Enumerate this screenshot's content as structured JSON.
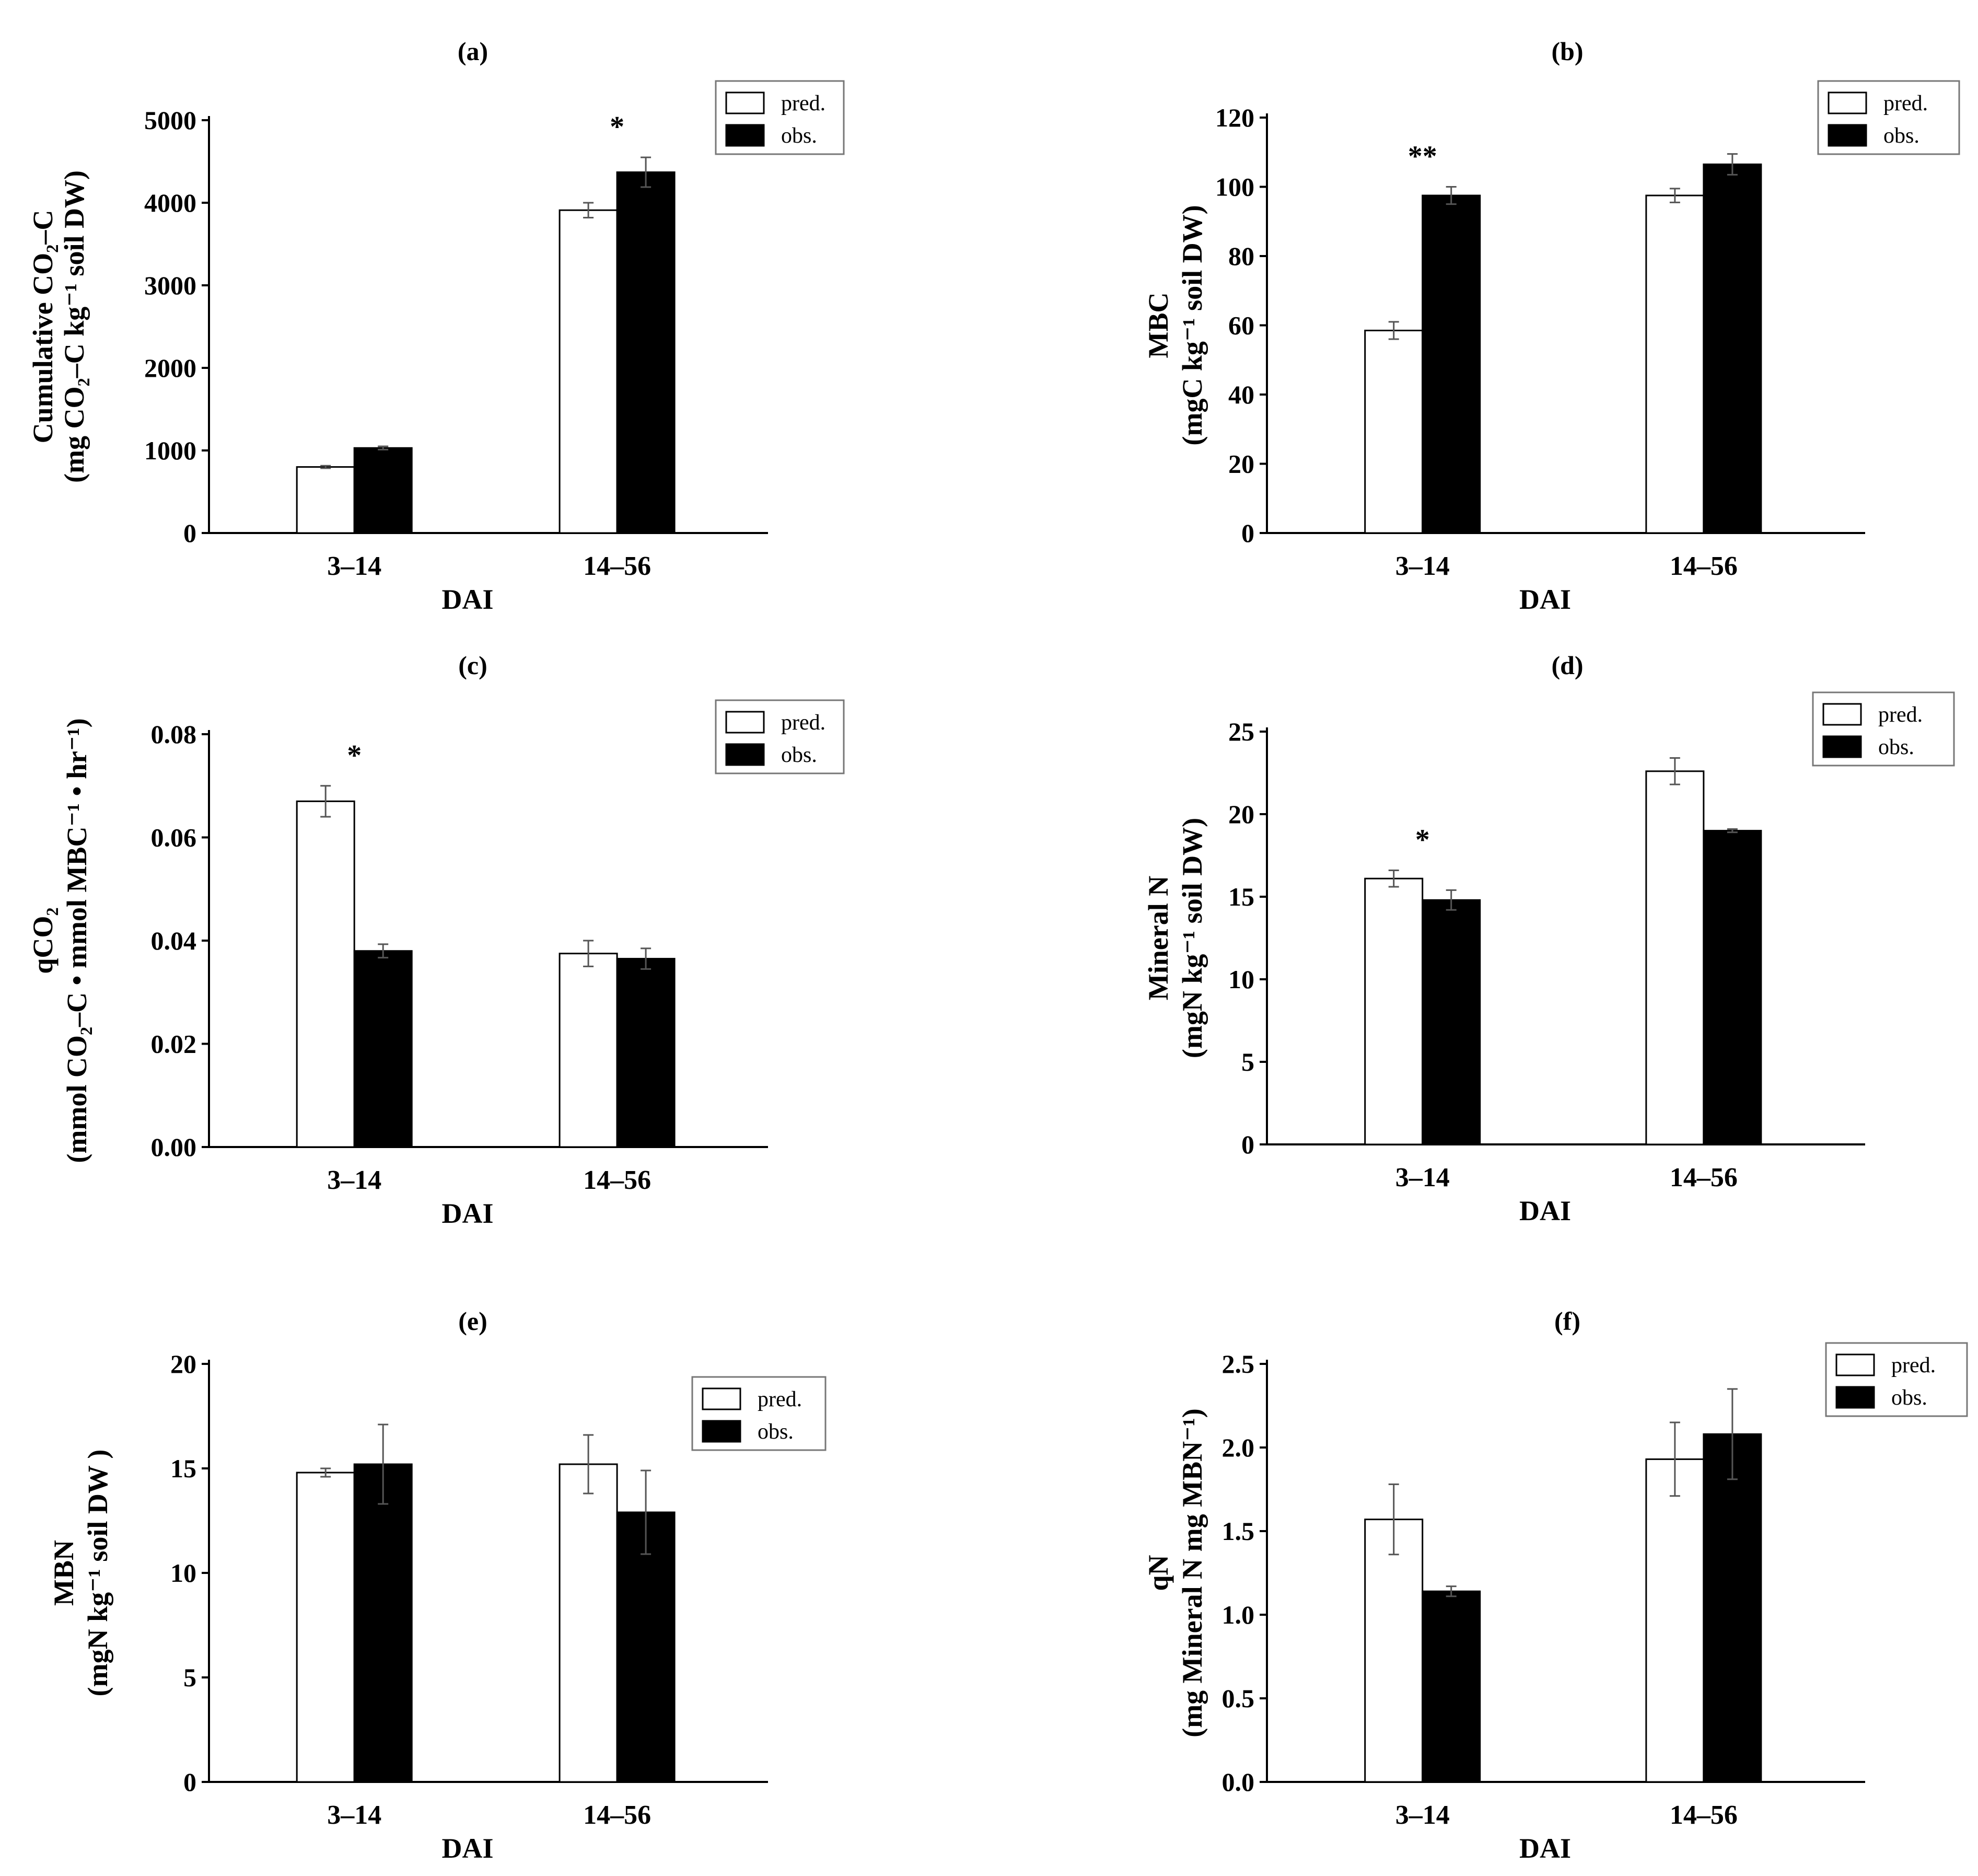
{
  "chart_data": [
    {
      "panel": "(a)",
      "type": "bar",
      "categories": [
        "3–14",
        "14–56"
      ],
      "series": [
        {
          "name": "pred.",
          "values": [
            800,
            3910
          ],
          "errors": [
            15,
            90
          ]
        },
        {
          "name": "obs.",
          "values": [
            1030,
            4370
          ],
          "errors": [
            20,
            180
          ]
        }
      ],
      "ylim": [
        0,
        5000
      ],
      "yticks": [
        "0",
        "1000",
        "2000",
        "3000",
        "4000",
        "5000"
      ],
      "ylabel_lines": [
        "Cumulative CO₂–C",
        "(mg CO₂–C kg⁻¹ soil DW)"
      ],
      "xlabel": "DAI",
      "significance": [
        "",
        "*"
      ],
      "legend": [
        "pred.",
        "obs."
      ]
    },
    {
      "panel": "(b)",
      "type": "bar",
      "categories": [
        "3–14",
        "14–56"
      ],
      "series": [
        {
          "name": "pred.",
          "values": [
            58.5,
            97.5
          ],
          "errors": [
            2.5,
            2
          ]
        },
        {
          "name": "obs.",
          "values": [
            97.5,
            106.5
          ],
          "errors": [
            2.5,
            3
          ]
        }
      ],
      "ylim": [
        0,
        120
      ],
      "yticks": [
        "0",
        "20",
        "40",
        "60",
        "80",
        "100",
        "120"
      ],
      "ylabel_lines": [
        "MBC",
        "(mgC kg⁻¹ soil DW)"
      ],
      "xlabel": "DAI",
      "significance": [
        "**",
        ""
      ],
      "legend": [
        "pred.",
        "obs."
      ]
    },
    {
      "panel": "(c)",
      "type": "bar",
      "categories": [
        "3–14",
        "14–56"
      ],
      "series": [
        {
          "name": "pred.",
          "values": [
            0.067,
            0.0375
          ],
          "errors": [
            0.003,
            0.0025
          ]
        },
        {
          "name": "obs.",
          "values": [
            0.038,
            0.0365
          ],
          "errors": [
            0.0013,
            0.002
          ]
        }
      ],
      "ylim": [
        0,
        0.08
      ],
      "yticks": [
        "0.00",
        "0.02",
        "0.04",
        "0.06",
        "0.08"
      ],
      "ylabel_lines": [
        "qCO₂",
        "(mmol CO₂–C • mmol MBC⁻¹ • hr⁻¹)"
      ],
      "xlabel": "DAI",
      "significance": [
        "*",
        ""
      ],
      "legend": [
        "pred.",
        "obs."
      ]
    },
    {
      "panel": "(d)",
      "type": "bar",
      "categories": [
        "3–14",
        "14–56"
      ],
      "series": [
        {
          "name": "pred.",
          "values": [
            16.1,
            22.6
          ],
          "errors": [
            0.5,
            0.8
          ]
        },
        {
          "name": "obs.",
          "values": [
            14.8,
            19.0
          ],
          "errors": [
            0.6,
            0.1
          ]
        }
      ],
      "ylim": [
        0,
        25
      ],
      "yticks": [
        "0",
        "5",
        "10",
        "15",
        "20",
        "25"
      ],
      "ylabel_lines": [
        "Mineral N",
        "(mgN kg⁻¹ soil DW)"
      ],
      "xlabel": "DAI",
      "significance": [
        "*",
        ""
      ],
      "legend": [
        "pred.",
        "obs."
      ]
    },
    {
      "panel": "(e)",
      "type": "bar",
      "categories": [
        "3–14",
        "14–56"
      ],
      "series": [
        {
          "name": "pred.",
          "values": [
            14.8,
            15.2
          ],
          "errors": [
            0.2,
            1.4
          ]
        },
        {
          "name": "obs.",
          "values": [
            15.2,
            12.9
          ],
          "errors": [
            1.9,
            2.0
          ]
        }
      ],
      "ylim": [
        0,
        20
      ],
      "yticks": [
        "0",
        "5",
        "10",
        "15",
        "20"
      ],
      "ylabel_lines": [
        "MBN",
        "(mgN kg⁻¹ soil DW )"
      ],
      "xlabel": "DAI",
      "significance": [
        "",
        ""
      ],
      "legend": [
        "pred.",
        "obs."
      ]
    },
    {
      "panel": "(f)",
      "type": "bar",
      "categories": [
        "3–14",
        "14–56"
      ],
      "series": [
        {
          "name": "pred.",
          "values": [
            1.57,
            1.93
          ],
          "errors": [
            0.21,
            0.22
          ]
        },
        {
          "name": "obs.",
          "values": [
            1.14,
            2.08
          ],
          "errors": [
            0.03,
            0.27
          ]
        }
      ],
      "ylim": [
        0,
        2.5
      ],
      "yticks": [
        "0.0",
        "0.5",
        "1.0",
        "1.5",
        "2.0",
        "2.5"
      ],
      "ylabel_lines": [
        "qN",
        "(mg Mineral N mg MBN⁻¹)"
      ],
      "xlabel": "DAI",
      "significance": [
        "",
        ""
      ],
      "legend": [
        "pred.",
        "obs."
      ]
    }
  ]
}
